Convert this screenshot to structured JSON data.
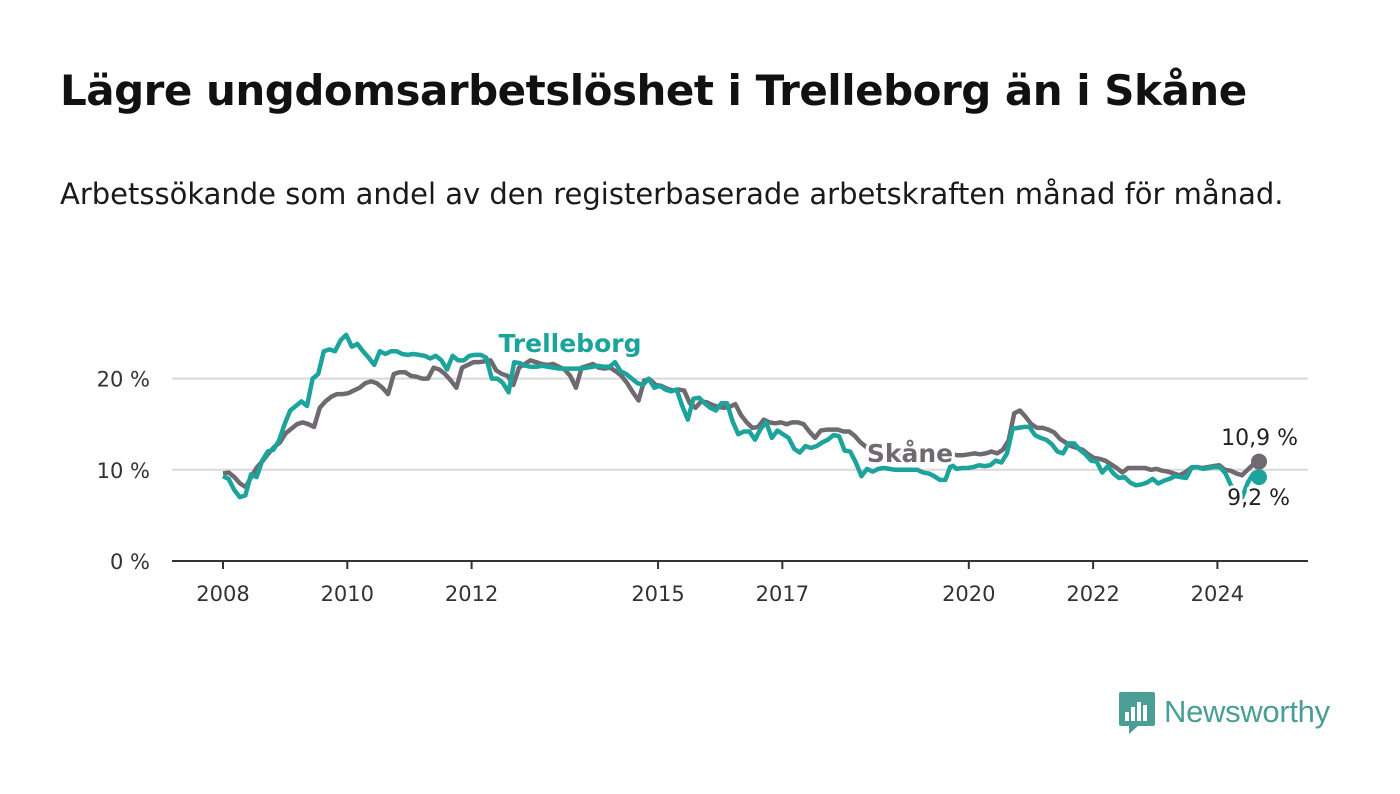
{
  "title": "Lägre ungdomsarbetslöshet i Trelleborg än i Skåne",
  "subtitle": "Arbetssökande som andel av den registerbaserade arbetskraften månad för månad.",
  "brand": {
    "name": "Newsworthy",
    "color": "#4a9e96"
  },
  "chart_data": {
    "type": "line",
    "x_start": 2008.0,
    "x_end": 2024.67,
    "xlim": [
      2008,
      2025.5
    ],
    "ylim": [
      0,
      25
    ],
    "y_ticks": [
      0,
      10,
      20
    ],
    "y_tick_labels": [
      "0 %",
      "10 %",
      "20 %"
    ],
    "x_ticks": [
      2008,
      2010,
      2012,
      2015,
      2017,
      2020,
      2022,
      2024
    ],
    "x_tick_labels": [
      "2008",
      "2010",
      "2012",
      "2015",
      "2017",
      "2020",
      "2022",
      "2024"
    ],
    "grid": true,
    "series": [
      {
        "name": "Skåne",
        "color": "#6e6a70",
        "label": "Skåne",
        "end_label": "10,9 %",
        "values": [
          9.6,
          9.7,
          9.2,
          8.5,
          8.1,
          9.3,
          10.3,
          11.0,
          11.8,
          12.5,
          13.0,
          14.0,
          14.5,
          15.0,
          15.2,
          15.0,
          14.7,
          16.8,
          17.5,
          18.0,
          18.3,
          18.3,
          18.4,
          18.7,
          19.0,
          19.5,
          19.7,
          19.5,
          19.0,
          18.3,
          20.5,
          20.7,
          20.7,
          20.3,
          20.2,
          20.0,
          20.0,
          21.2,
          21.0,
          20.5,
          19.8,
          19.0,
          21.2,
          21.5,
          21.8,
          21.8,
          21.9,
          22.0,
          20.9,
          20.5,
          20.3,
          19.3,
          21.2,
          21.6,
          22.0,
          21.8,
          21.6,
          21.5,
          21.6,
          21.3,
          21.0,
          20.3,
          19.0,
          21.2,
          21.4,
          21.6,
          21.2,
          21.1,
          21.2,
          20.8,
          20.3,
          19.5,
          18.5,
          17.6,
          19.8,
          19.9,
          19.3,
          19.2,
          18.9,
          18.7,
          18.8,
          18.7,
          17.3,
          16.8,
          17.5,
          17.4,
          17.1,
          16.9,
          16.8,
          16.9,
          17.2,
          16.0,
          15.2,
          14.6,
          14.7,
          15.5,
          15.2,
          15.1,
          15.2,
          15.0,
          15.2,
          15.2,
          15.0,
          14.2,
          13.5,
          14.3,
          14.4,
          14.4,
          14.4,
          14.2,
          14.2,
          13.7,
          13.0,
          12.5,
          12.4,
          12.1,
          11.8,
          11.6,
          11.6,
          11.5,
          11.5,
          11.6,
          11.5,
          11.5,
          11.4,
          11.4,
          11.6,
          11.6,
          11.7,
          11.6,
          11.6,
          11.7,
          11.8,
          11.7,
          11.8,
          12.0,
          11.8,
          12.2,
          13.2,
          16.2,
          16.5,
          15.8,
          15.0,
          14.6,
          14.6,
          14.4,
          14.1,
          13.4,
          13.0,
          12.6,
          12.4,
          12.2,
          11.7,
          11.3,
          11.2,
          11.0,
          10.6,
          10.2,
          9.7,
          10.2,
          10.2,
          10.2,
          10.2,
          10.0,
          10.1,
          9.9,
          9.8,
          9.6,
          9.4,
          9.7,
          10.2,
          10.3,
          10.2,
          10.3,
          10.4,
          10.5,
          10.0,
          9.9,
          9.6,
          9.4,
          10.0,
          10.6,
          10.9
        ]
      },
      {
        "name": "Trelleborg",
        "color": "#1ba39c",
        "label": "Trelleborg",
        "end_label": "9,2 %",
        "values": [
          9.3,
          9.0,
          7.8,
          7.0,
          7.2,
          9.5,
          9.2,
          11.0,
          12.0,
          12.2,
          13.2,
          15.0,
          16.5,
          17.0,
          17.5,
          17.0,
          20.0,
          20.5,
          23.0,
          23.2,
          23.0,
          24.2,
          24.8,
          23.5,
          23.8,
          23.0,
          22.3,
          21.5,
          23.0,
          22.7,
          23.0,
          23.0,
          22.7,
          22.6,
          22.7,
          22.6,
          22.5,
          22.2,
          22.5,
          22.0,
          21.0,
          22.5,
          22.0,
          22.0,
          22.5,
          22.6,
          22.6,
          22.3,
          20.0,
          20.0,
          19.5,
          18.5,
          21.8,
          21.7,
          21.4,
          21.3,
          21.3,
          21.4,
          21.3,
          21.2,
          21.1,
          21.1,
          21.1,
          21.1,
          21.1,
          21.2,
          21.3,
          21.4,
          21.3,
          21.3,
          21.8,
          20.8,
          20.5,
          20.0,
          19.5,
          19.3,
          20.0,
          19.0,
          19.2,
          18.8,
          18.6,
          18.8,
          17.0,
          15.5,
          17.8,
          17.9,
          17.3,
          16.8,
          16.5,
          17.3,
          17.3,
          15.3,
          13.9,
          14.2,
          14.2,
          13.3,
          14.5,
          15.2,
          13.5,
          14.3,
          13.9,
          13.5,
          12.3,
          11.9,
          12.6,
          12.4,
          12.6,
          13.0,
          13.3,
          13.8,
          13.7,
          12.1,
          12.0,
          10.8,
          9.3,
          10.1,
          9.8,
          10.1,
          10.2,
          10.1,
          10.0,
          10.0,
          10.0,
          10.0,
          10.0,
          9.7,
          9.6,
          9.3,
          8.9,
          8.9,
          10.6,
          10.1,
          10.2,
          10.2,
          10.3,
          10.5,
          10.4,
          10.5,
          11.0,
          10.8,
          11.8,
          14.5,
          14.6,
          14.7,
          14.7,
          13.8,
          13.5,
          13.3,
          12.8,
          12.0,
          11.8,
          12.9,
          12.9,
          12.2,
          11.7,
          11.0,
          10.9,
          9.7,
          10.4,
          9.6,
          9.1,
          9.2,
          8.6,
          8.3,
          8.4,
          8.6,
          9.0,
          8.5,
          8.8,
          9.0,
          9.3,
          9.2,
          9.1,
          10.3,
          10.3,
          10.1,
          10.2,
          10.3,
          10.3,
          9.6,
          8.3,
          7.5,
          7.0,
          8.6,
          9.6,
          9.2
        ]
      }
    ]
  }
}
